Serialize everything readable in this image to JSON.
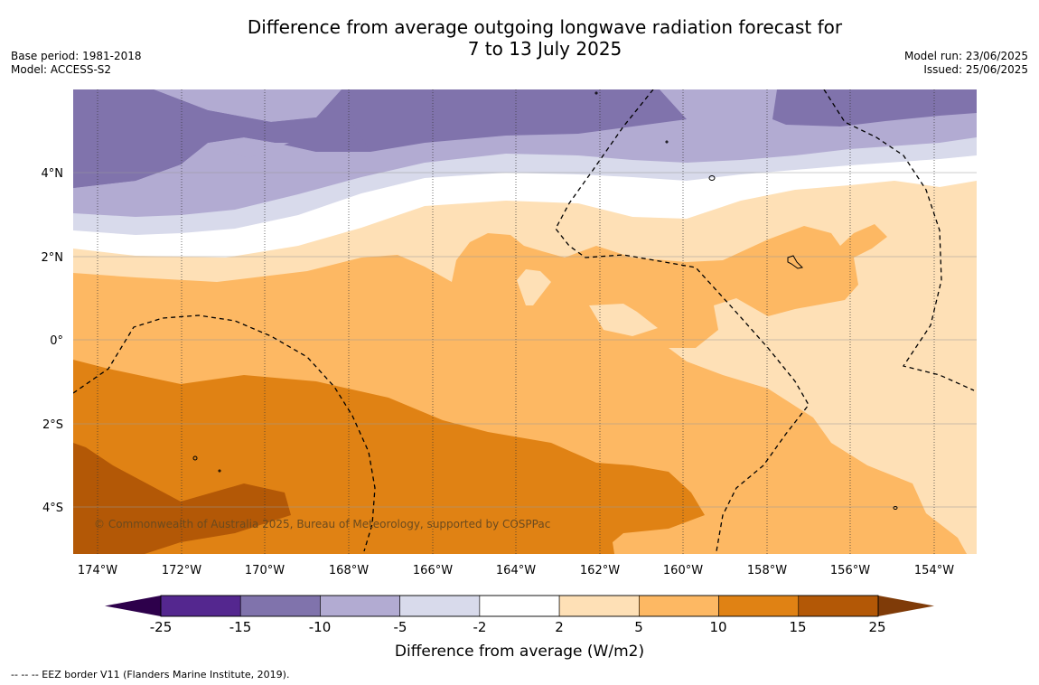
{
  "title": {
    "line1": "Difference from average outgoing longwave radiation forecast for",
    "line2": "7 to 13 July 2025"
  },
  "meta_left": {
    "base_period": "Base period: 1981-2018",
    "model": "Model: ACCESS-S2"
  },
  "meta_right": {
    "model_run": "Model run: 23/06/2025",
    "issued": "Issued: 25/06/2025"
  },
  "map": {
    "lon_labels": [
      "174°W",
      "172°W",
      "170°W",
      "168°W",
      "166°W",
      "164°W",
      "162°W",
      "160°W",
      "158°W",
      "156°W",
      "154°W"
    ],
    "lat_labels": [
      "4°N",
      "2°N",
      "0°",
      "2°S",
      "4°S"
    ],
    "copyright": "© Commonwealth of Australia 2025, Bureau of Meteorology, supported by COSPPac"
  },
  "colorbar": {
    "label": "Difference from average (W/m2)",
    "ticks": [
      "-25",
      "-15",
      "-10",
      "-5",
      "-2",
      "2",
      "5",
      "10",
      "15",
      "25"
    ],
    "colors": [
      "#54278f",
      "#8073ac",
      "#b2abd2",
      "#d8daeb",
      "#ffffff",
      "#fee0b6",
      "#fdb863",
      "#e08214",
      "#b35806"
    ],
    "under_color": "#2d004b",
    "over_color": "#7f3b08"
  },
  "footnote": "--  --  -- EEZ border V11 (Flanders Marine Institute, 2019)."
}
